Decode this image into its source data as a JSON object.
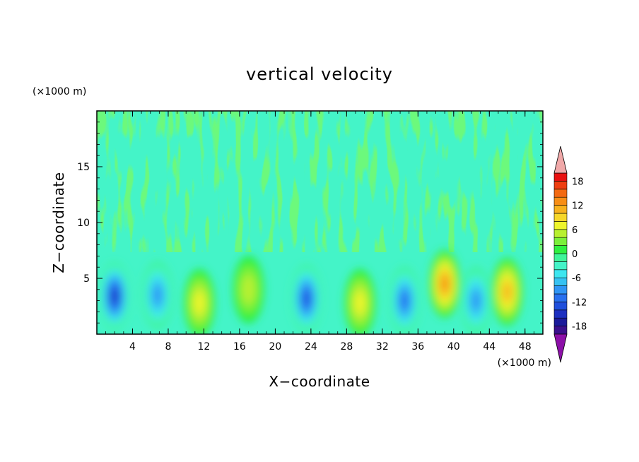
{
  "chart_data": {
    "type": "heatmap",
    "title": "vertical velocity",
    "xlabel": "X−coordinate",
    "ylabel": "Z−coordinate",
    "x_units": "(×1000 m)",
    "y_units": "(×1000 m)",
    "xlim": [
      0,
      50
    ],
    "ylim": [
      0,
      20
    ],
    "x_ticks": [
      4,
      8,
      12,
      16,
      20,
      24,
      28,
      32,
      36,
      40,
      44,
      48
    ],
    "y_ticks": [
      5,
      10,
      15
    ],
    "grid": false,
    "colorbar": {
      "placement": "right",
      "extend": "both",
      "levels": [
        -20,
        -18,
        -16,
        -14,
        -12,
        -10,
        -8,
        -6,
        -4,
        -2,
        0,
        2,
        4,
        6,
        8,
        10,
        12,
        14,
        16,
        18,
        20
      ],
      "tick_labels": [
        -18,
        -12,
        -6,
        0,
        6,
        12,
        18
      ],
      "colors": [
        "#3a0f8c",
        "#1a1a9a",
        "#1c2fc0",
        "#1f4fdc",
        "#2870ef",
        "#2f95f5",
        "#36c2f2",
        "#3ee6ef",
        "#44f4c8",
        "#3ff59a",
        "#2ff040",
        "#7bf03a",
        "#b8f030",
        "#eef52c",
        "#f6d72a",
        "#f7b21e",
        "#f78e16",
        "#f36a12",
        "#ee3e10",
        "#e81010"
      ],
      "under_color": "#8c10a8",
      "over_color": "#f0a8a8"
    },
    "features": [
      {
        "x": 2,
        "z": 3.4,
        "w": -16
      },
      {
        "x": 6.8,
        "z": 3.5,
        "w": -10
      },
      {
        "x": 11.5,
        "z": 2.8,
        "w": 8
      },
      {
        "x": 17,
        "z": 4,
        "w": 6
      },
      {
        "x": 23.5,
        "z": 3.2,
        "w": -14
      },
      {
        "x": 29.5,
        "z": 2.8,
        "w": 8
      },
      {
        "x": 34.5,
        "z": 3,
        "w": -12
      },
      {
        "x": 39,
        "z": 4.5,
        "w": 14
      },
      {
        "x": 42.5,
        "z": 3,
        "w": -10
      },
      {
        "x": 46,
        "z": 3.8,
        "w": 12
      }
    ]
  }
}
